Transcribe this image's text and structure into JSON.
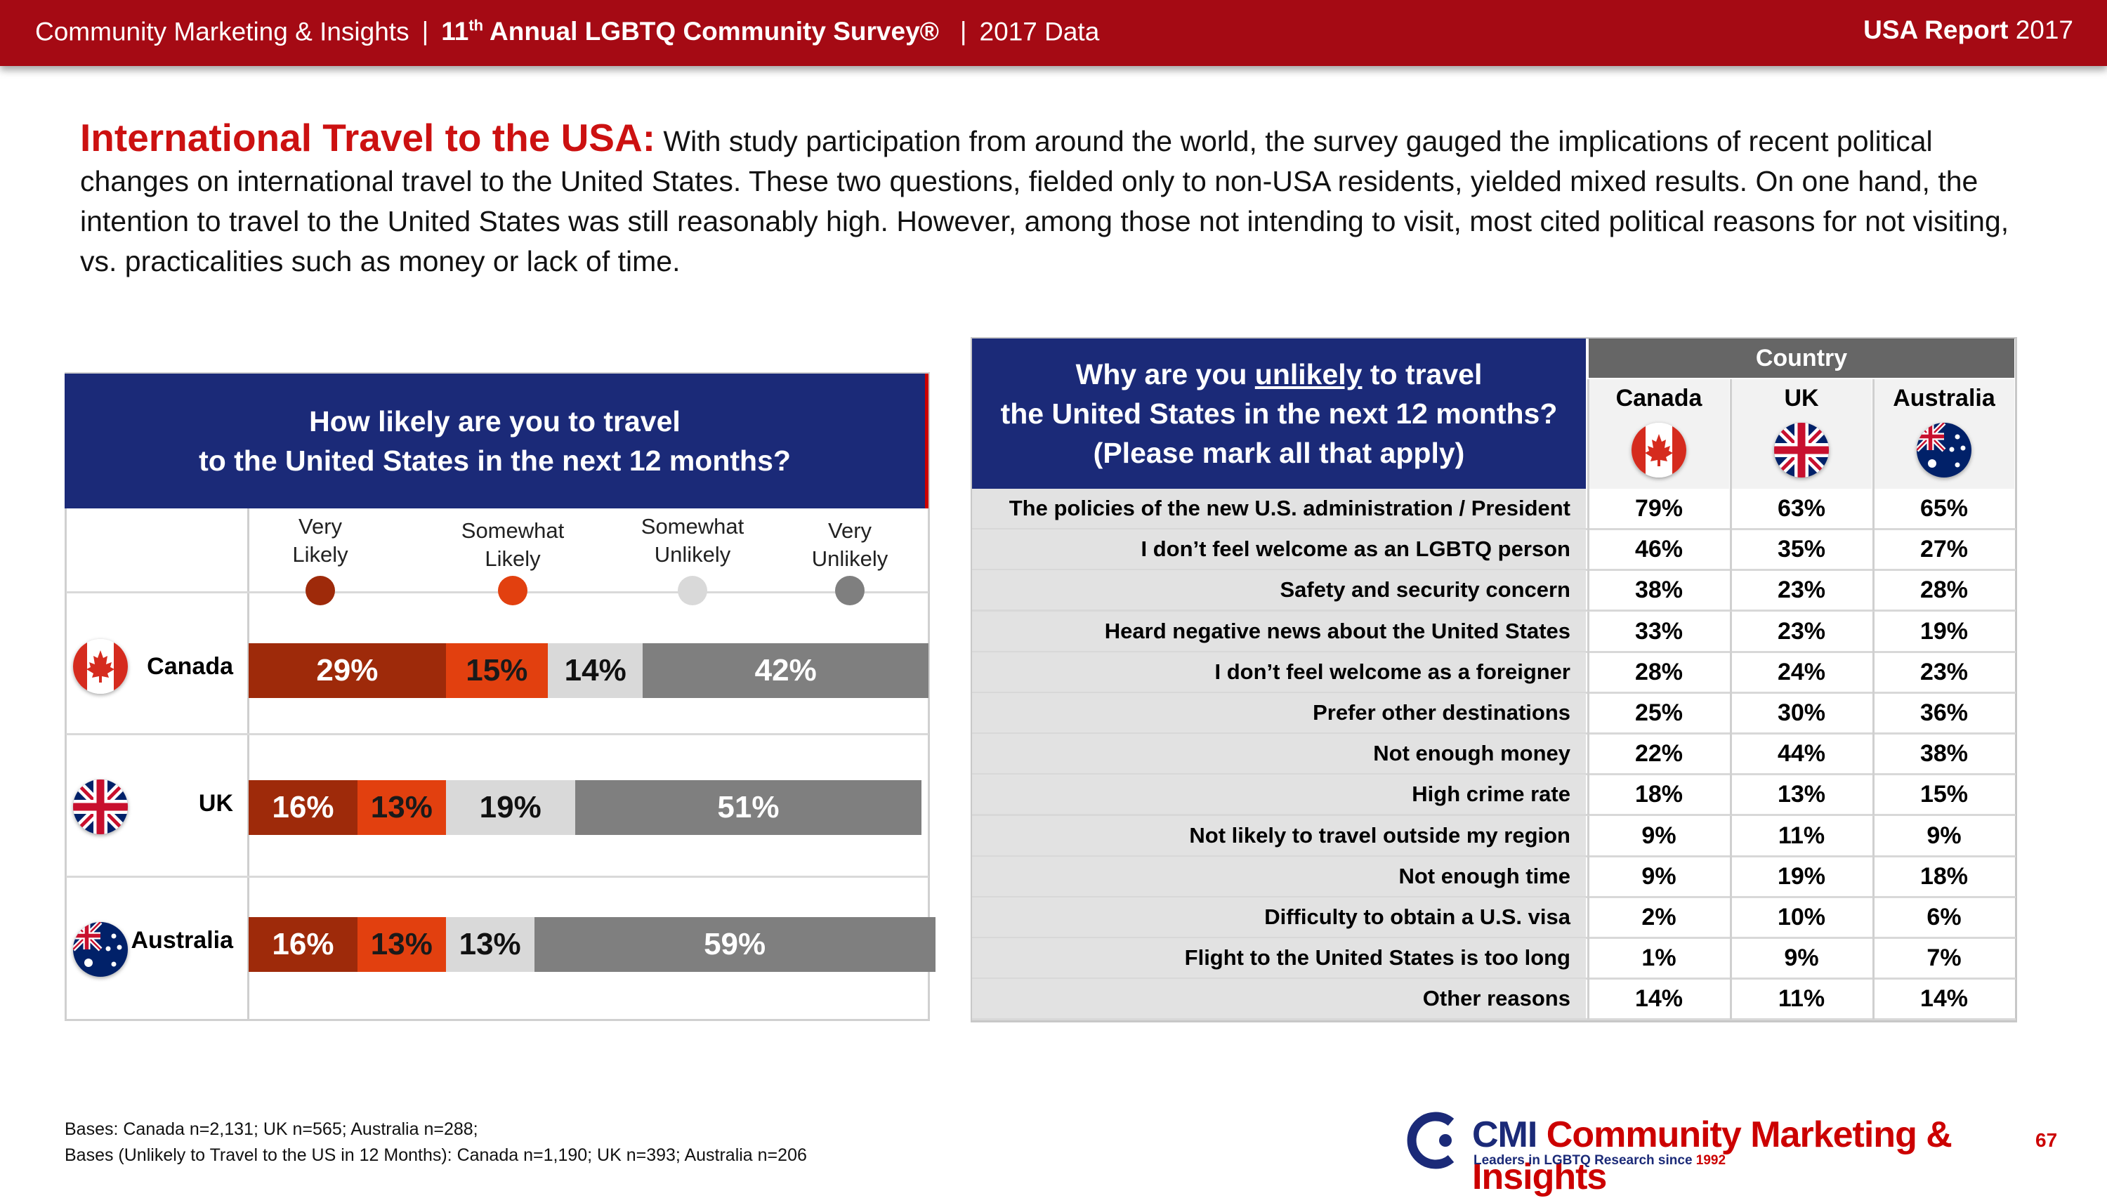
{
  "header": {
    "org": "Community Marketing & Insights",
    "survey_ordinal": "11",
    "survey_ordinal_suffix": "th",
    "survey_title": "Annual LGBTQ Community Survey®",
    "year_data": "2017 Data",
    "report_bold": "USA Report",
    "report_year": "2017"
  },
  "intro": {
    "heading": "International Travel to the USA:",
    "text": "With study participation from around the world, the survey gauged the implications of recent political changes on international travel to the United States. These two questions, fielded only to non-USA residents, yielded mixed results. On one hand, the intention to travel to the United States was still reasonably high. However, among those not intending to visit, most cited political reasons for not visiting, vs. practicalities such as money or lack of time."
  },
  "colors": {
    "very_likely": "#9e2a0a",
    "somewhat_likely": "#e2400f",
    "somewhat_unlikely": "#d9d9d9",
    "very_unlikely": "#7f7f7f",
    "navy": "#1b2a78",
    "red": "#a50a14"
  },
  "chart_data": {
    "type": "bar",
    "orientation": "horizontal-stacked-100",
    "title_line1": "How likely are you to travel",
    "title_line2": "to the United States in the next 12 months?",
    "categories": [
      "Canada",
      "UK",
      "Australia"
    ],
    "series": [
      {
        "name": "Very Likely",
        "name_l1": "Very",
        "name_l2": "Likely",
        "values": [
          29,
          16,
          16
        ]
      },
      {
        "name": "Somewhat Likely",
        "name_l1": "Somewhat",
        "name_l2": "Likely",
        "values": [
          15,
          13,
          13
        ]
      },
      {
        "name": "Somewhat Unlikely",
        "name_l1": "Somewhat",
        "name_l2": "Unlikely",
        "values": [
          14,
          19,
          13
        ]
      },
      {
        "name": "Very Unlikely",
        "name_l1": "Very",
        "name_l2": "Unlikely",
        "values": [
          42,
          51,
          59
        ]
      }
    ],
    "unit": "%",
    "xlim": [
      0,
      100
    ]
  },
  "table": {
    "question_l1_pre": "Why are you ",
    "question_l1_u": "unlikely",
    "question_l1_post": " to travel",
    "question_l2": "the United States in the next 12 months?",
    "question_l3": "(Please mark all that apply)",
    "country_header": "Country",
    "columns": [
      "Canada",
      "UK",
      "Australia"
    ],
    "rows": [
      {
        "label": "The policies of the new U.S. administration / President",
        "values": [
          "79%",
          "63%",
          "65%"
        ]
      },
      {
        "label": "I don’t feel welcome as an LGBTQ person",
        "values": [
          "46%",
          "35%",
          "27%"
        ]
      },
      {
        "label": "Safety and security concern",
        "values": [
          "38%",
          "23%",
          "28%"
        ]
      },
      {
        "label": "Heard negative news about the United States",
        "values": [
          "33%",
          "23%",
          "19%"
        ]
      },
      {
        "label": "I don’t feel welcome as a foreigner",
        "values": [
          "28%",
          "24%",
          "23%"
        ]
      },
      {
        "label": "Prefer other destinations",
        "values": [
          "25%",
          "30%",
          "36%"
        ]
      },
      {
        "label": "Not enough money",
        "values": [
          "22%",
          "44%",
          "38%"
        ]
      },
      {
        "label": "High crime rate",
        "values": [
          "18%",
          "13%",
          "15%"
        ]
      },
      {
        "label": "Not likely to travel outside my region",
        "values": [
          "9%",
          "11%",
          "9%"
        ]
      },
      {
        "label": "Not enough time",
        "values": [
          "9%",
          "19%",
          "18%"
        ]
      },
      {
        "label": "Difficulty to obtain a U.S. visa",
        "values": [
          "2%",
          "10%",
          "6%"
        ]
      },
      {
        "label": "Flight to the United States is too long",
        "values": [
          "1%",
          "9%",
          "7%"
        ]
      },
      {
        "label": "Other reasons",
        "values": [
          "14%",
          "11%",
          "14%"
        ]
      }
    ]
  },
  "footer": {
    "bases1": "Bases: Canada n=2,131; UK n=565; Australia n=288;",
    "bases2": "Bases (Unlikely to Travel to the US in 12 Months): Canada n=1,190; UK n=393; Australia n=206",
    "logo_cmi": "CMI",
    "logo_name": "Community Marketing & Insights",
    "logo_tag_pre": "Leaders in LGBTQ Research since ",
    "logo_tag_year": "1992",
    "page": "67"
  }
}
